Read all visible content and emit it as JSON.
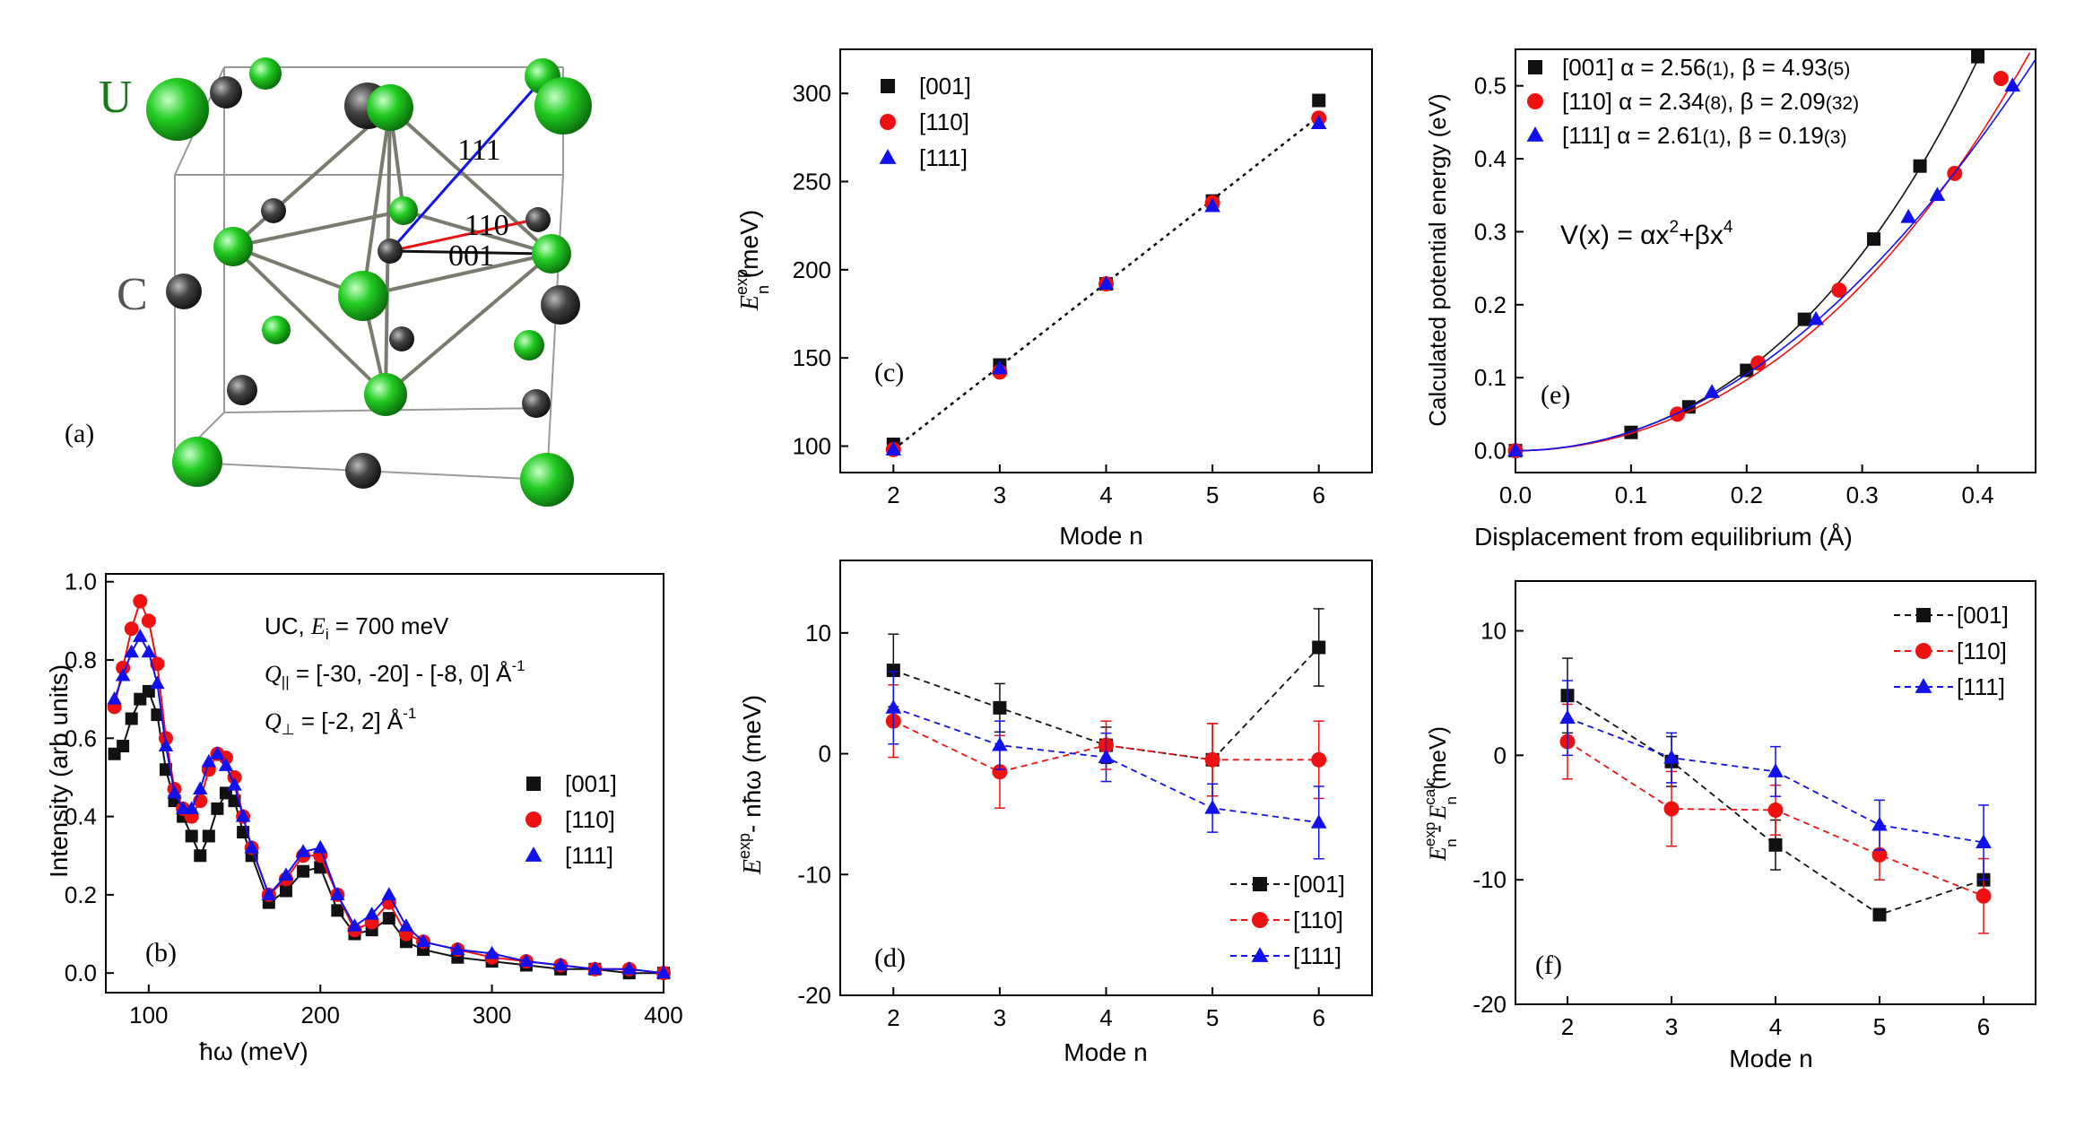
{
  "colors": {
    "black": "#111111",
    "red": "#ee1111",
    "blue": "#1111ee",
    "green": "#22cc22",
    "carbon": "#444444"
  },
  "panel_a": {
    "label": "(a)",
    "atom_u_label": "U",
    "atom_c_label": "C",
    "dir_111": "111",
    "dir_110": "110",
    "dir_001": "001"
  },
  "chart_data": [
    {
      "id": "b",
      "type": "scatter",
      "panel_label": "(b)",
      "xlabel": "ħω (meV)",
      "ylabel": "Intensity (arb units)",
      "xlim": [
        75,
        400
      ],
      "ylim": [
        -0.05,
        1.02
      ],
      "xticks": [
        100,
        200,
        300,
        400
      ],
      "yticks": [
        0.0,
        0.2,
        0.4,
        0.6,
        0.8,
        1.0
      ],
      "xtick_labels": [
        "100",
        "200",
        "300",
        "400"
      ],
      "ytick_labels": [
        "0.0",
        "0.2",
        "0.4",
        "0.6",
        "0.8",
        "1.0"
      ],
      "annotation": {
        "line1_pre": "UC, ",
        "line1_var": "E",
        "line1_sub": "i",
        "line1_post": " = 700 meV",
        "line2_var": "Q",
        "line2_sub": "||",
        "line2_post": " = [-30, -20] - [-8, 0] Å",
        "line2_sup": "-1",
        "line3_var": "Q",
        "line3_sub": "⊥",
        "line3_post": " = [-2, 2] Å",
        "line3_sup": "-1"
      },
      "series": [
        {
          "name": "[001]",
          "marker": "square",
          "color": "#111111",
          "x": [
            80,
            85,
            90,
            95,
            100,
            105,
            110,
            115,
            120,
            125,
            130,
            135,
            140,
            145,
            150,
            155,
            160,
            170,
            180,
            190,
            200,
            210,
            220,
            230,
            240,
            250,
            260,
            280,
            300,
            320,
            340,
            360,
            380,
            400
          ],
          "y": [
            0.56,
            0.58,
            0.65,
            0.7,
            0.72,
            0.66,
            0.52,
            0.44,
            0.4,
            0.35,
            0.3,
            0.35,
            0.42,
            0.46,
            0.44,
            0.36,
            0.3,
            0.18,
            0.21,
            0.26,
            0.27,
            0.16,
            0.1,
            0.11,
            0.14,
            0.08,
            0.06,
            0.04,
            0.03,
            0.02,
            0.01,
            0.01,
            0.0,
            0.0
          ]
        },
        {
          "name": "[110]",
          "marker": "circle",
          "color": "#ee1111",
          "x": [
            80,
            85,
            90,
            95,
            100,
            105,
            110,
            115,
            120,
            125,
            130,
            135,
            140,
            145,
            150,
            155,
            160,
            170,
            180,
            190,
            200,
            210,
            220,
            230,
            240,
            250,
            260,
            280,
            300,
            320,
            340,
            360,
            380,
            400
          ],
          "y": [
            0.68,
            0.78,
            0.88,
            0.95,
            0.9,
            0.79,
            0.6,
            0.47,
            0.42,
            0.4,
            0.44,
            0.52,
            0.56,
            0.55,
            0.5,
            0.4,
            0.32,
            0.2,
            0.24,
            0.3,
            0.3,
            0.2,
            0.11,
            0.13,
            0.18,
            0.1,
            0.08,
            0.06,
            0.04,
            0.03,
            0.02,
            0.01,
            0.01,
            0.0
          ]
        },
        {
          "name": "[111]",
          "marker": "triangle",
          "color": "#1111ee",
          "x": [
            80,
            85,
            90,
            95,
            100,
            105,
            110,
            115,
            120,
            125,
            130,
            135,
            140,
            145,
            150,
            155,
            160,
            170,
            180,
            190,
            200,
            210,
            220,
            230,
            240,
            250,
            260,
            280,
            300,
            320,
            340,
            360,
            380,
            400
          ],
          "y": [
            0.7,
            0.76,
            0.82,
            0.86,
            0.82,
            0.74,
            0.58,
            0.46,
            0.42,
            0.42,
            0.47,
            0.54,
            0.56,
            0.53,
            0.48,
            0.4,
            0.32,
            0.2,
            0.25,
            0.31,
            0.32,
            0.2,
            0.12,
            0.15,
            0.2,
            0.12,
            0.08,
            0.06,
            0.05,
            0.03,
            0.02,
            0.01,
            0.01,
            0.0
          ]
        }
      ]
    },
    {
      "id": "c",
      "type": "scatter",
      "panel_label": "(c)",
      "xlabel": "Mode n",
      "ylabel_var": "E",
      "ylabel_sup": "exp",
      "ylabel_sub": "n",
      "ylabel_unit": " (meV)",
      "xlim": [
        1.5,
        6.5
      ],
      "ylim": [
        85,
        325
      ],
      "xticks": [
        2,
        3,
        4,
        5,
        6
      ],
      "yticks": [
        100,
        150,
        200,
        250,
        300
      ],
      "xtick_labels": [
        "2",
        "3",
        "4",
        "5",
        "6"
      ],
      "ytick_labels": [
        "100",
        "150",
        "200",
        "250",
        "300"
      ],
      "fit_line": {
        "x": [
          2,
          6
        ],
        "y": [
          98,
          287
        ]
      },
      "series": [
        {
          "name": "[001]",
          "marker": "square",
          "color": "#111111",
          "x": [
            2,
            3,
            4,
            5,
            6
          ],
          "y": [
            101,
            146,
            192,
            239,
            296
          ]
        },
        {
          "name": "[110]",
          "marker": "circle",
          "color": "#ee1111",
          "x": [
            2,
            3,
            4,
            5,
            6
          ],
          "y": [
            98,
            142,
            192,
            238,
            286
          ]
        },
        {
          "name": "[111]",
          "marker": "triangle",
          "color": "#1111ee",
          "x": [
            2,
            3,
            4,
            5,
            6
          ],
          "y": [
            98,
            144,
            192,
            236,
            283
          ]
        }
      ]
    },
    {
      "id": "e",
      "type": "scatter",
      "panel_label": "(e)",
      "xlabel": "Displacement from equilibrium (Å)",
      "ylabel": "Calculated potential energy (eV)",
      "xlim": [
        0.0,
        0.45
      ],
      "ylim": [
        -0.03,
        0.55
      ],
      "xticks": [
        0.0,
        0.1,
        0.2,
        0.3,
        0.4
      ],
      "yticks": [
        0.0,
        0.1,
        0.2,
        0.3,
        0.4,
        0.5
      ],
      "xtick_labels": [
        "0.0",
        "0.1",
        "0.2",
        "0.3",
        "0.4"
      ],
      "ytick_labels": [
        "0.0",
        "0.1",
        "0.2",
        "0.3",
        "0.4",
        "0.5"
      ],
      "formula": {
        "pre": "V(x) = αx",
        "sup1": "2",
        "mid": "+βx",
        "sup2": "4"
      },
      "series": [
        {
          "name": "[001]",
          "alpha_label": "α = 2.56",
          "alpha_err": "(1)",
          "beta_label": "β = 4.93",
          "beta_err": "(5)",
          "marker": "square",
          "color": "#111111",
          "alpha": 2.56,
          "beta": 4.93,
          "x": [
            0.0,
            0.1,
            0.15,
            0.2,
            0.25,
            0.31,
            0.35,
            0.4
          ],
          "y": [
            0.0,
            0.025,
            0.06,
            0.11,
            0.18,
            0.29,
            0.39,
            0.54
          ]
        },
        {
          "name": "[110]",
          "alpha_label": "α = 2.34",
          "alpha_err": "(8)",
          "beta_label": "β = 2.09",
          "beta_err": "(32)",
          "marker": "circle",
          "color": "#ee1111",
          "alpha": 2.34,
          "beta": 2.09,
          "x": [
            0.0,
            0.14,
            0.21,
            0.28,
            0.38,
            0.42
          ],
          "y": [
            0.0,
            0.05,
            0.12,
            0.22,
            0.38,
            0.51
          ]
        },
        {
          "name": "[111]",
          "alpha_label": "α = 2.61",
          "alpha_err": "(1)",
          "beta_label": "β = 0.19",
          "beta_err": "(3)",
          "marker": "triangle",
          "color": "#1111ee",
          "alpha": 2.61,
          "beta": 0.19,
          "x": [
            0.0,
            0.17,
            0.26,
            0.34,
            0.365,
            0.43
          ],
          "y": [
            0.0,
            0.08,
            0.18,
            0.32,
            0.35,
            0.5
          ]
        }
      ]
    },
    {
      "id": "d",
      "type": "line",
      "panel_label": "(d)",
      "xlabel": "Mode n",
      "ylabel_var": "E",
      "ylabel_sup": "exp",
      "ylabel_post": "- nħω (meV)",
      "xlim": [
        1.5,
        6.5
      ],
      "ylim": [
        -20,
        16
      ],
      "xticks": [
        2,
        3,
        4,
        5,
        6
      ],
      "yticks": [
        -20,
        -10,
        0,
        10
      ],
      "xtick_labels": [
        "2",
        "3",
        "4",
        "5",
        "6"
      ],
      "ytick_labels": [
        "-20",
        "-10",
        "0",
        "10"
      ],
      "series": [
        {
          "name": "[001]",
          "marker": "square",
          "color": "#111111",
          "x": [
            2,
            3,
            4,
            5,
            6
          ],
          "y": [
            6.9,
            3.8,
            0.7,
            -0.5,
            8.8
          ],
          "err": [
            3.0,
            2.0,
            1.5,
            3.0,
            3.2
          ]
        },
        {
          "name": "[110]",
          "marker": "circle",
          "color": "#ee1111",
          "x": [
            2,
            3,
            4,
            5,
            6
          ],
          "y": [
            2.7,
            -1.5,
            0.7,
            -0.5,
            -0.5
          ],
          "err": [
            3.0,
            3.0,
            2.0,
            3.0,
            3.2
          ]
        },
        {
          "name": "[111]",
          "marker": "triangle",
          "color": "#1111ee",
          "x": [
            2,
            3,
            4,
            5,
            6
          ],
          "y": [
            3.8,
            0.7,
            -0.3,
            -4.5,
            -5.7
          ],
          "err": [
            3.0,
            2.0,
            2.0,
            2.0,
            3.0
          ]
        }
      ]
    },
    {
      "id": "f",
      "type": "line",
      "panel_label": "(f)",
      "xlabel": "Mode n",
      "ylabel_var": "E",
      "ylabel_sup1": "exp",
      "ylabel_sub1": "n",
      "ylabel_mid": " - E",
      "ylabel_sup2": "calc",
      "ylabel_sub2": "n",
      "ylabel_unit": " (meV)",
      "xlim": [
        1.5,
        6.5
      ],
      "ylim": [
        -20,
        14
      ],
      "xticks": [
        2,
        3,
        4,
        5,
        6
      ],
      "yticks": [
        -20,
        -10,
        0,
        10
      ],
      "xtick_labels": [
        "2",
        "3",
        "4",
        "5",
        "6"
      ],
      "ytick_labels": [
        "-20",
        "-10",
        "0",
        "10"
      ],
      "series": [
        {
          "name": "[001]",
          "marker": "square",
          "color": "#111111",
          "x": [
            2,
            3,
            4,
            5,
            6
          ],
          "y": [
            4.8,
            -0.5,
            -7.2,
            -12.8,
            -10.0
          ],
          "err": [
            3.0,
            2.0,
            2.0,
            0,
            0
          ]
        },
        {
          "name": "[110]",
          "marker": "circle",
          "color": "#ee1111",
          "x": [
            2,
            3,
            4,
            5,
            6
          ],
          "y": [
            1.1,
            -4.3,
            -4.4,
            -8.0,
            -11.3
          ],
          "err": [
            3.0,
            3.0,
            2.0,
            2.0,
            3.0
          ]
        },
        {
          "name": "[111]",
          "marker": "triangle",
          "color": "#1111ee",
          "x": [
            2,
            3,
            4,
            5,
            6
          ],
          "y": [
            3.0,
            -0.2,
            -1.3,
            -5.6,
            -7.0
          ],
          "err": [
            3.0,
            2.0,
            2.0,
            2.0,
            3.0
          ]
        }
      ]
    }
  ]
}
